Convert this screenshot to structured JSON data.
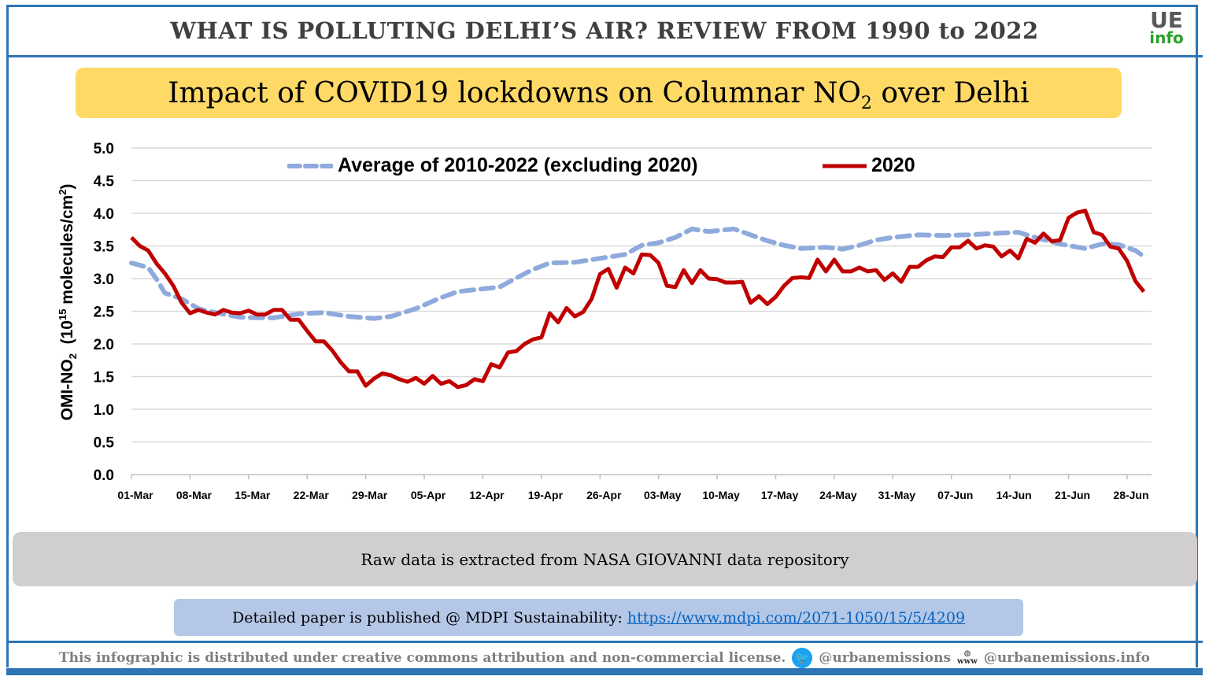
{
  "header": {
    "title": "WHAT IS POLLUTING DELHI’S AIR? REVIEW FROM 1990 to 2022",
    "logo_top": "UE",
    "logo_bottom": "info"
  },
  "subtitle": {
    "pre": "Impact of COVID19 lockdowns on Columnar NO",
    "sub": "2",
    "post": " over Delhi"
  },
  "chart_data": {
    "type": "line",
    "ylabel": {
      "pre": "OMI-NO",
      "sub": "2",
      "mid": "  (10",
      "sup": "15",
      "mid2": " molecules/cm",
      "sup2": "2",
      "post": ")"
    },
    "ylim": [
      0,
      5
    ],
    "yticks": [
      "0.0",
      "0.5",
      "1.0",
      "1.5",
      "2.0",
      "2.5",
      "3.0",
      "3.5",
      "4.0",
      "4.5",
      "5.0"
    ],
    "xticks": [
      "01-Mar",
      "08-Mar",
      "15-Mar",
      "22-Mar",
      "29-Mar",
      "05-Apr",
      "12-Apr",
      "19-Apr",
      "26-Apr",
      "03-May",
      "10-May",
      "17-May",
      "24-May",
      "31-May",
      "07-Jun",
      "14-Jun",
      "21-Jun",
      "28-Jun"
    ],
    "grid": true,
    "legend_position": "top",
    "series": [
      {
        "name": "Average of 2010-2022 (excluding 2020)",
        "color": "#8faadc",
        "style": "dashed",
        "x": [
          "01-Mar",
          "03-Mar",
          "04-Mar",
          "05-Mar",
          "07-Mar",
          "09-Mar",
          "11-Mar",
          "14-Mar",
          "16-Mar",
          "18-Mar",
          "21-Mar",
          "24-Mar",
          "27-Mar",
          "30-Mar",
          "01-Apr",
          "04-Apr",
          "07-Apr",
          "09-Apr",
          "11-Apr",
          "14-Apr",
          "16-Apr",
          "18-Apr",
          "20-Apr",
          "23-Apr",
          "24-Apr",
          "26-Apr",
          "29-Apr",
          "01-May",
          "03-May",
          "05-May",
          "07-May",
          "09-May",
          "12-May",
          "14-May",
          "16-May",
          "18-May",
          "20-May",
          "23-May",
          "25-May",
          "27-May",
          "29-May",
          "31-May",
          "03-Jun",
          "06-Jun",
          "09-Jun",
          "12-Jun",
          "15-Jun",
          "17-Jun",
          "20-Jun",
          "23-Jun",
          "25-Jun",
          "27-Jun",
          "29-Jun",
          "30-Jun"
        ],
        "y": [
          3.24,
          3.17,
          2.99,
          2.78,
          2.69,
          2.54,
          2.48,
          2.41,
          2.4,
          2.4,
          2.46,
          2.48,
          2.42,
          2.39,
          2.42,
          2.54,
          2.71,
          2.8,
          2.83,
          2.87,
          3.01,
          3.14,
          3.24,
          3.25,
          3.27,
          3.31,
          3.37,
          3.51,
          3.55,
          3.63,
          3.76,
          3.72,
          3.76,
          3.67,
          3.58,
          3.51,
          3.46,
          3.48,
          3.45,
          3.51,
          3.59,
          3.63,
          3.67,
          3.66,
          3.67,
          3.69,
          3.71,
          3.63,
          3.53,
          3.46,
          3.53,
          3.52,
          3.43,
          3.34
        ]
      },
      {
        "name": "2020",
        "color": "#c00000",
        "style": "solid",
        "x": [
          "01-Mar",
          "02-Mar",
          "03-Mar",
          "04-Mar",
          "05-Mar",
          "06-Mar",
          "07-Mar",
          "08-Mar",
          "09-Mar",
          "10-Mar",
          "11-Mar",
          "12-Mar",
          "13-Mar",
          "14-Mar",
          "15-Mar",
          "16-Mar",
          "17-Mar",
          "18-Mar",
          "19-Mar",
          "20-Mar",
          "21-Mar",
          "22-Mar",
          "23-Mar",
          "24-Mar",
          "25-Mar",
          "26-Mar",
          "27-Mar",
          "28-Mar",
          "29-Mar",
          "30-Mar",
          "31-Mar",
          "01-Apr",
          "02-Apr",
          "03-Apr",
          "04-Apr",
          "05-Apr",
          "06-Apr",
          "07-Apr",
          "08-Apr",
          "09-Apr",
          "10-Apr",
          "11-Apr",
          "12-Apr",
          "13-Apr",
          "14-Apr",
          "15-Apr",
          "16-Apr",
          "17-Apr",
          "18-Apr",
          "19-Apr",
          "20-Apr",
          "21-Apr",
          "22-Apr",
          "23-Apr",
          "24-Apr",
          "25-Apr",
          "26-Apr",
          "27-Apr",
          "28-Apr",
          "29-Apr",
          "30-Apr",
          "01-May",
          "02-May",
          "03-May",
          "04-May",
          "05-May",
          "06-May",
          "07-May",
          "08-May",
          "09-May",
          "10-May",
          "11-May",
          "12-May",
          "13-May",
          "14-May",
          "15-May",
          "16-May",
          "17-May",
          "18-May",
          "19-May",
          "20-May",
          "21-May",
          "22-May",
          "23-May",
          "24-May",
          "25-May",
          "26-May",
          "27-May",
          "28-May",
          "29-May",
          "30-May",
          "31-May",
          "01-Jun",
          "02-Jun",
          "03-Jun",
          "04-Jun",
          "05-Jun",
          "06-Jun",
          "07-Jun",
          "08-Jun",
          "09-Jun",
          "10-Jun",
          "11-Jun",
          "12-Jun",
          "13-Jun",
          "14-Jun",
          "15-Jun",
          "16-Jun",
          "17-Jun",
          "18-Jun",
          "19-Jun",
          "20-Jun",
          "21-Jun",
          "22-Jun",
          "23-Jun",
          "24-Jun",
          "25-Jun",
          "26-Jun",
          "27-Jun",
          "28-Jun",
          "29-Jun",
          "30-Jun"
        ],
        "y": [
          3.63,
          3.5,
          3.43,
          3.23,
          3.08,
          2.89,
          2.63,
          2.47,
          2.52,
          2.48,
          2.45,
          2.52,
          2.48,
          2.47,
          2.51,
          2.45,
          2.45,
          2.52,
          2.52,
          2.37,
          2.37,
          2.2,
          2.04,
          2.04,
          1.9,
          1.72,
          1.58,
          1.58,
          1.36,
          1.47,
          1.55,
          1.52,
          1.46,
          1.42,
          1.48,
          1.39,
          1.51,
          1.39,
          1.43,
          1.34,
          1.37,
          1.46,
          1.43,
          1.69,
          1.64,
          1.87,
          1.89,
          2.0,
          2.07,
          2.1,
          2.47,
          2.33,
          2.55,
          2.42,
          2.49,
          2.69,
          3.07,
          3.15,
          2.86,
          3.17,
          3.08,
          3.37,
          3.36,
          3.24,
          2.89,
          2.87,
          3.13,
          2.93,
          3.13,
          3.0,
          2.99,
          2.94,
          2.94,
          2.95,
          2.63,
          2.73,
          2.61,
          2.72,
          2.89,
          3.01,
          3.02,
          3.01,
          3.29,
          3.11,
          3.29,
          3.11,
          3.11,
          3.17,
          3.11,
          3.13,
          2.98,
          3.08,
          2.95,
          3.18,
          3.18,
          3.28,
          3.34,
          3.33,
          3.48,
          3.48,
          3.58,
          3.46,
          3.51,
          3.49,
          3.34,
          3.43,
          3.31,
          3.61,
          3.55,
          3.69,
          3.57,
          3.59,
          3.93,
          4.01,
          4.04,
          3.71,
          3.67,
          3.49,
          3.46,
          3.27,
          2.96,
          2.8
        ]
      }
    ]
  },
  "source_note": "Raw data is extracted from NASA GIOVANNI data repository",
  "paper": {
    "text": "Detailed paper is published @ MDPI Sustainability: ",
    "link": "https://www.mdpi.com/2071-1050/15/5/4209"
  },
  "footer": {
    "license": "This infographic is distributed under creative commons attribution and non-commercial license.",
    "twitter": "@urbanemissions",
    "website": "@urbanemissions.info",
    "www_label": "www"
  }
}
